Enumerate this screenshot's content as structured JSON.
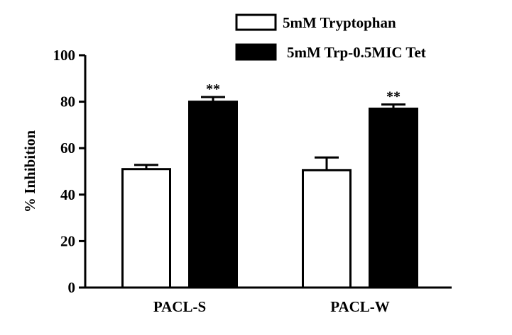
{
  "chart_data": {
    "type": "bar",
    "title": "",
    "xlabel": "",
    "ylabel": "% Inhibition",
    "ylim": [
      0,
      100
    ],
    "yticks": [
      0,
      20,
      40,
      60,
      80,
      100
    ],
    "ytick_labels": [
      "0",
      "20",
      "40",
      "60",
      "80",
      "100"
    ],
    "grid": false,
    "legend_position": "top-right",
    "categories": [
      "PACL-S",
      "PACL-W"
    ],
    "series": [
      {
        "name": "5mM Tryptophan",
        "values": [
          51,
          50.5
        ],
        "errors": [
          1.8,
          5.5
        ],
        "fill": "#ffffff",
        "stroke": "#000000"
      },
      {
        "name": "5mM Trp-0.5MIC Tet",
        "values": [
          80,
          77
        ],
        "errors": [
          2,
          1.8
        ],
        "fill": "#000000",
        "stroke": "#000000"
      }
    ],
    "annotations": [
      {
        "category": 0,
        "series": 1,
        "text": "**"
      },
      {
        "category": 1,
        "series": 1,
        "text": "**"
      }
    ]
  }
}
